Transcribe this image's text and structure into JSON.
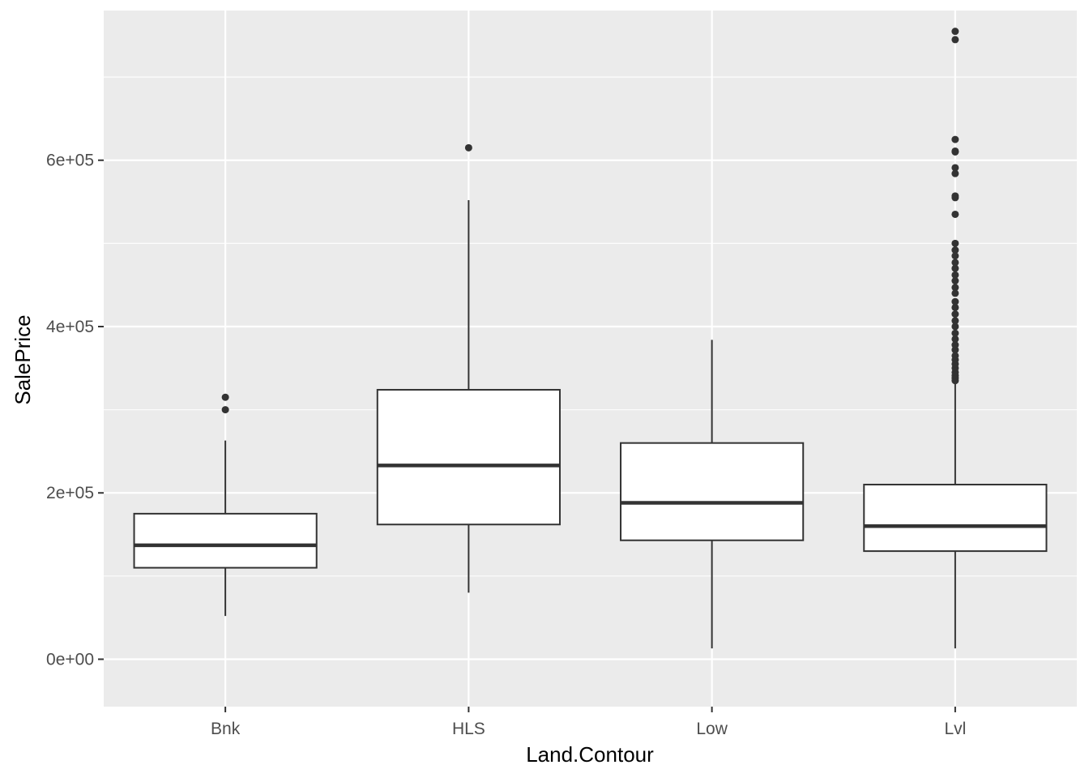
{
  "chart_data": {
    "type": "boxplot",
    "xlabel": "Land.Contour",
    "ylabel": "SalePrice",
    "ylim": [
      -57000,
      780000
    ],
    "yticks": [
      0,
      200000,
      400000,
      600000
    ],
    "ytick_labels": [
      "0e+00",
      "2e+05",
      "4e+05",
      "6e+05"
    ],
    "y_minor_ticks": [
      100000,
      300000,
      500000,
      700000
    ],
    "categories": [
      "Bnk",
      "HLS",
      "Low",
      "Lvl"
    ],
    "boxes": [
      {
        "category": "Bnk",
        "whisker_low": 52000,
        "q1": 110000,
        "median": 137000,
        "q3": 175000,
        "whisker_high": 263000,
        "outliers": [
          300000,
          315000
        ]
      },
      {
        "category": "HLS",
        "whisker_low": 80000,
        "q1": 162000,
        "median": 233000,
        "q3": 324000,
        "whisker_high": 552000,
        "outliers": [
          615000
        ]
      },
      {
        "category": "Low",
        "whisker_low": 13000,
        "q1": 143000,
        "median": 188000,
        "q3": 260000,
        "whisker_high": 384000,
        "outliers": []
      },
      {
        "category": "Lvl",
        "whisker_low": 13000,
        "q1": 130000,
        "median": 160000,
        "q3": 210000,
        "whisker_high": 332000,
        "outliers": [
          335000,
          338000,
          341000,
          345000,
          350000,
          355000,
          360000,
          365000,
          372000,
          378000,
          385000,
          392000,
          400000,
          407000,
          415000,
          423000,
          430000,
          440000,
          447000,
          455000,
          462000,
          470000,
          477000,
          485000,
          492000,
          500000,
          535000,
          555000,
          557000,
          584000,
          591000,
          610000,
          611000,
          625000,
          745000,
          755000
        ]
      }
    ],
    "colors": {
      "panel_background": "#ebebeb",
      "grid_major": "#ffffff",
      "box_fill": "#ffffff",
      "box_stroke": "#333333",
      "outlier": "#333333"
    }
  }
}
